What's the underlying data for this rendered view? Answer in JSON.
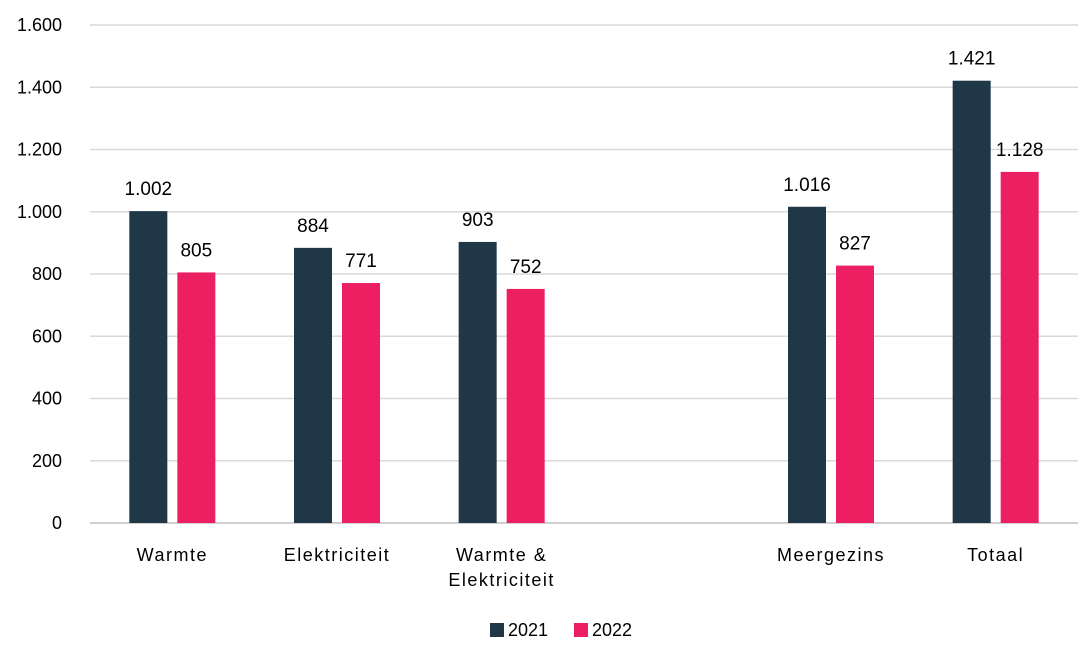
{
  "chart_data": {
    "type": "bar",
    "categories": [
      "Warmte",
      "Elektriciteit",
      "Warmte & Elektriciteit",
      "",
      "Meergezins",
      "Totaal"
    ],
    "category_lines": [
      [
        "Warmte"
      ],
      [
        "Elektriciteit"
      ],
      [
        "Warmte &",
        "Elektriciteit"
      ],
      [],
      [
        "Meergezins"
      ],
      [
        "Totaal"
      ]
    ],
    "series": [
      {
        "name": "2021",
        "values": [
          1002,
          884,
          903,
          null,
          1016,
          1421
        ],
        "labels": [
          "1.002",
          "884",
          "903",
          "",
          "1.016",
          "1.421"
        ],
        "color": "#203748"
      },
      {
        "name": "2022",
        "values": [
          805,
          771,
          752,
          null,
          827,
          1128
        ],
        "labels": [
          "805",
          "771",
          "752",
          "",
          "827",
          "1.128"
        ],
        "color": "#ec1f63"
      }
    ],
    "ylim": [
      0,
      1600
    ],
    "yticks": [
      0,
      200,
      400,
      600,
      800,
      1000,
      1200,
      1400,
      1600
    ],
    "ytick_labels": [
      "0",
      "200",
      "400",
      "600",
      "800",
      "1.000",
      "1.200",
      "1.400",
      "1.600"
    ],
    "grid": true,
    "legend_position": "bottom-center",
    "title": "",
    "xlabel": "",
    "ylabel": ""
  }
}
